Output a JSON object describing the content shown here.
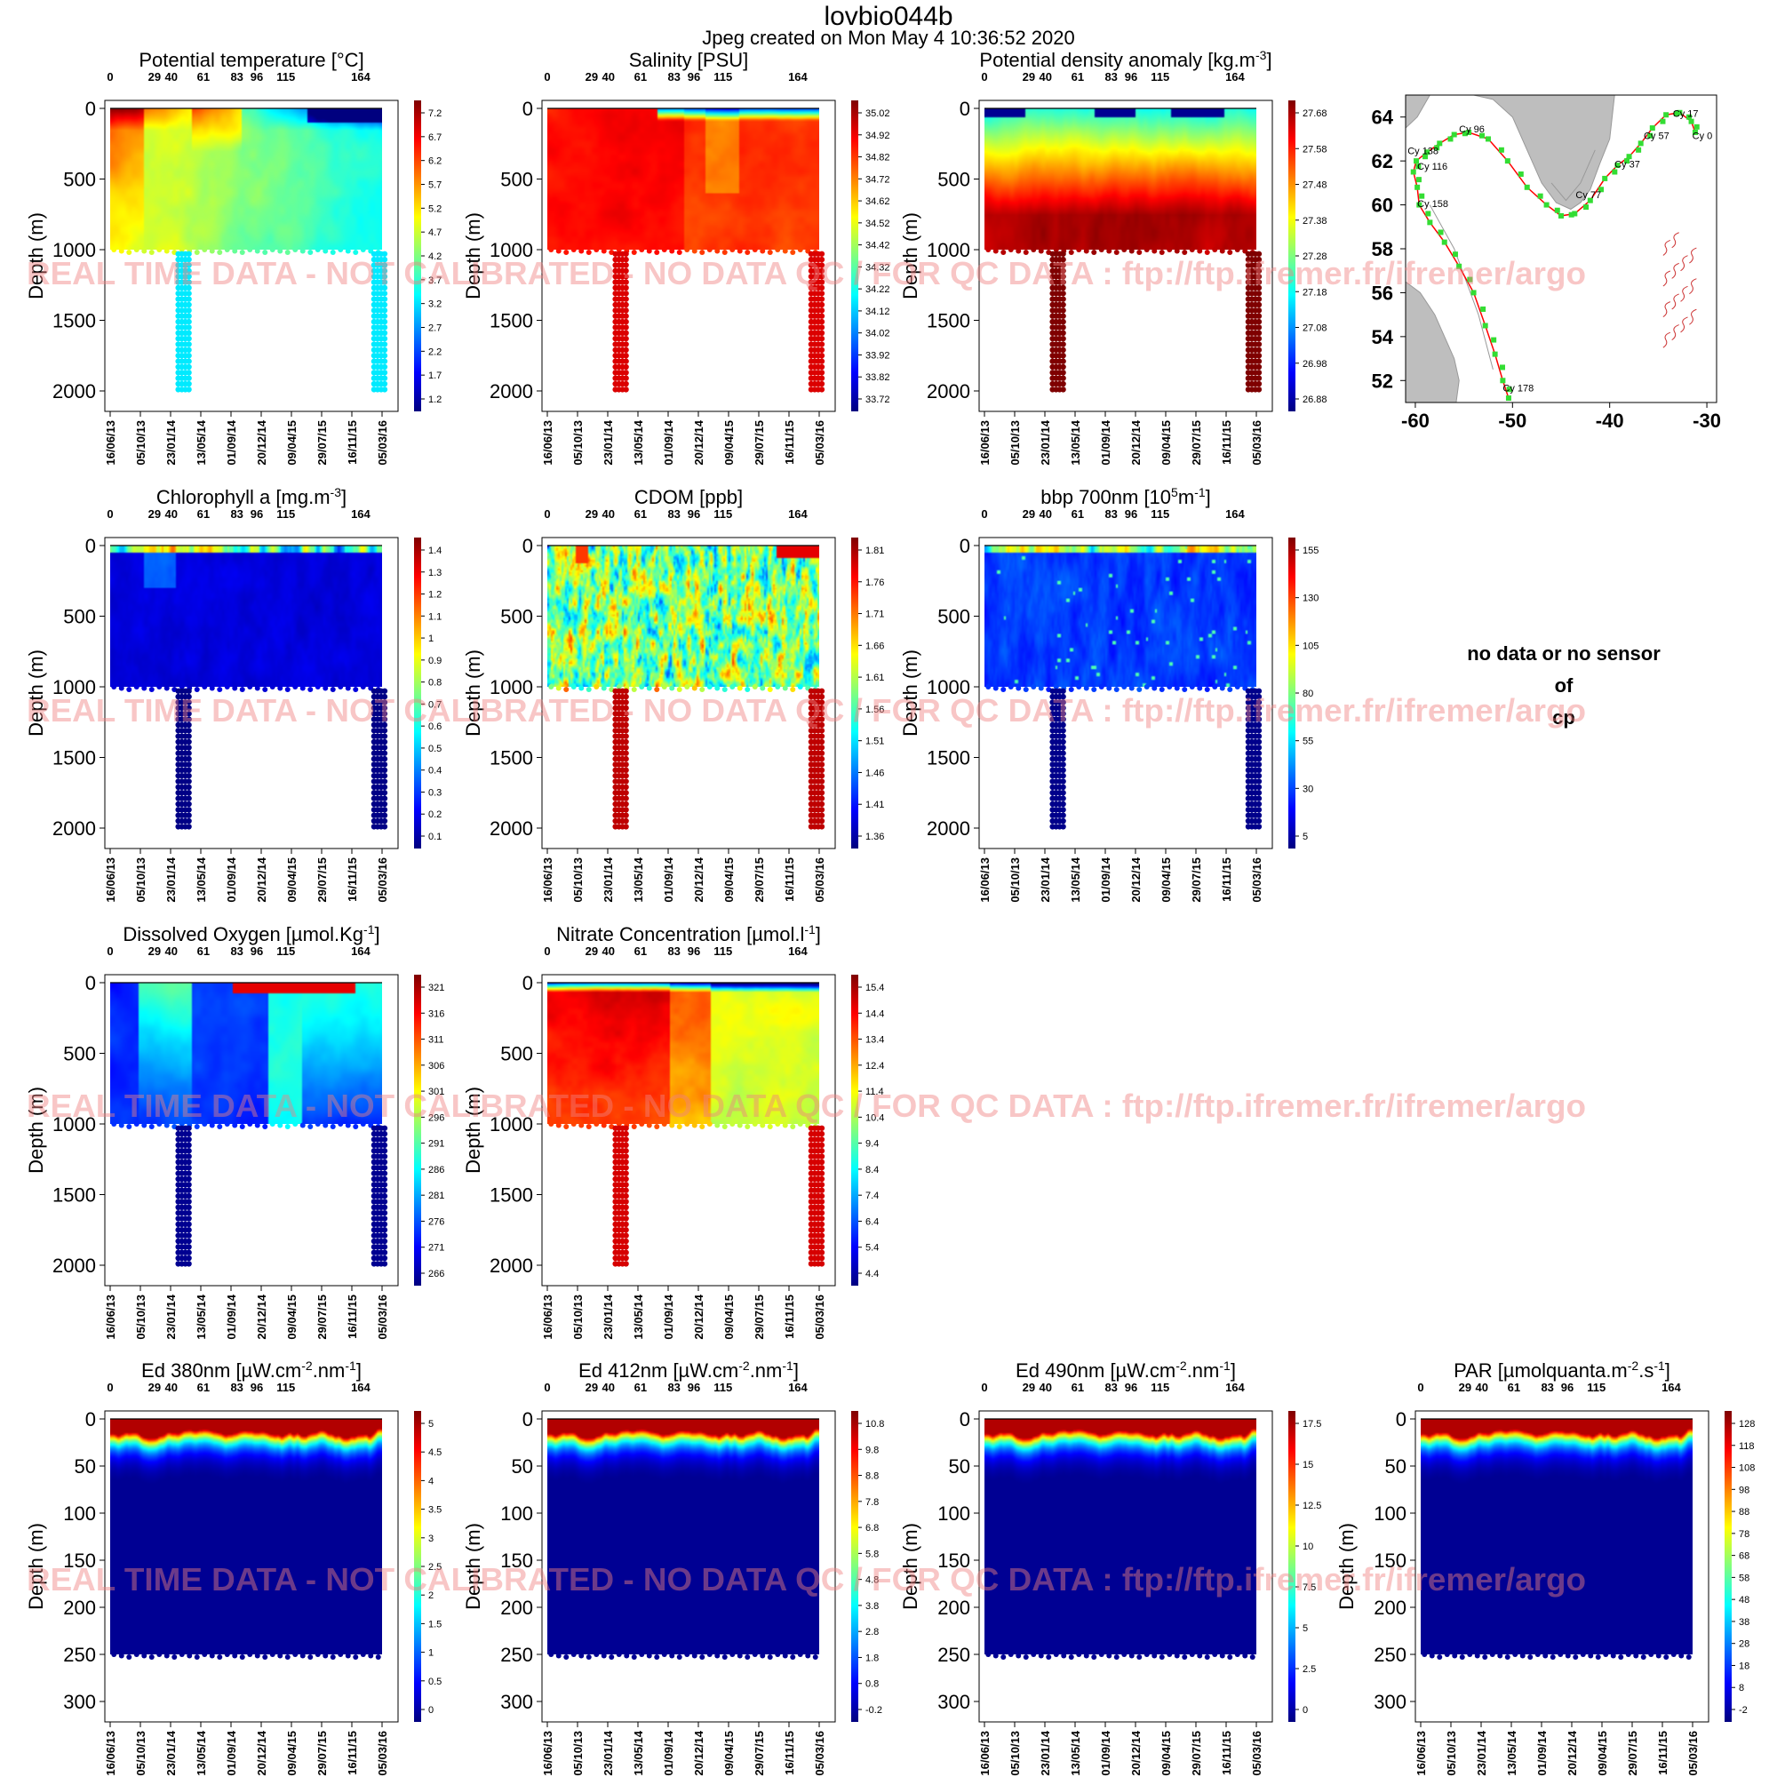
{
  "header": {
    "title": "lovbio044b",
    "subtitle": "Jpeg created on  Mon May  4 10:36:52 2020"
  },
  "watermark": "REAL TIME DATA - NOT CALIBRATED - NO DATA QC  / FOR QC DATA : ftp://ftp.ifremer.fr/ifremer/argo",
  "no_data": {
    "line1": "no data or no sensor",
    "line2": "of",
    "line3": "cp"
  },
  "axes": {
    "ylabel": "Depth (m)",
    "cycle_ticks": [
      "0",
      "29",
      "40",
      "61",
      "83",
      "96",
      "115",
      "164"
    ],
    "cycle_values": [
      0,
      29,
      40,
      61,
      83,
      96,
      115,
      164
    ],
    "date_ticks": [
      "16/06/13",
      "05/10/13",
      "23/01/14",
      "13/05/14",
      "01/09/14",
      "20/12/14",
      "09/04/15",
      "29/07/15",
      "16/11/15",
      "05/03/16"
    ],
    "date_values": [
      "2013-06-16",
      "2013-10-05",
      "2014-01-23",
      "2014-05-13",
      "2014-09-01",
      "2014-12-20",
      "2015-04-09",
      "2015-07-29",
      "2015-11-16",
      "2016-03-05"
    ]
  },
  "colors": {
    "jet": [
      "#00007f",
      "#0000ff",
      "#007fff",
      "#00ffff",
      "#7fff7f",
      "#ffff00",
      "#ff7f00",
      "#ff0000",
      "#7f0000"
    ],
    "map_land": "#bebebe",
    "map_track": "#ff0000",
    "map_points": "#33dd33"
  },
  "chart_data": [
    {
      "id": "temp",
      "type": "heatmap",
      "title": "Potential temperature [°C]",
      "ylim": [
        2000,
        0
      ],
      "yticks": [
        "0",
        "500",
        "1000",
        "1500",
        "2000"
      ],
      "colorbar": [
        "7.2",
        "6.7",
        "6.2",
        "5.7",
        "5.2",
        "4.7",
        "4.2",
        "3.7",
        "3.2",
        "2.7",
        "2.2",
        "1.7",
        "1.2"
      ],
      "range": [
        1.2,
        7.4
      ],
      "deep_value": 3.4
    },
    {
      "id": "sal",
      "type": "heatmap",
      "title": "Salinity [PSU]",
      "ylim": [
        2000,
        0
      ],
      "yticks": [
        "0",
        "500",
        "1000",
        "1500",
        "2000"
      ],
      "colorbar": [
        "35.02",
        "34.92",
        "34.82",
        "34.72",
        "34.62",
        "34.52",
        "34.42",
        "34.32",
        "34.22",
        "34.12",
        "34.02",
        "33.92",
        "33.82",
        "33.72"
      ],
      "range": [
        33.72,
        35.05
      ],
      "deep_value": 34.93
    },
    {
      "id": "dens",
      "type": "heatmap",
      "title": "Potential density anomaly [kg.m^-3]",
      "ylim": [
        2000,
        0
      ],
      "yticks": [
        "0",
        "500",
        "1000",
        "1500",
        "2000"
      ],
      "colorbar": [
        "27.68",
        "27.58",
        "27.48",
        "27.38",
        "27.28",
        "27.18",
        "27.08",
        "26.98",
        "26.88"
      ],
      "colorbar_reversed": true,
      "range": [
        26.85,
        27.72
      ],
      "deep_value": 27.72
    },
    {
      "id": "chla",
      "type": "heatmap",
      "title": "Chlorophyll a [mg.m^-3]",
      "ylim": [
        2000,
        0
      ],
      "yticks": [
        "0",
        "500",
        "1000",
        "1500",
        "2000"
      ],
      "colorbar": [
        "1.4",
        "1.3",
        "1.2",
        "1.1",
        "1",
        "0.9",
        "0.8",
        "0.7",
        "0.6",
        "0.5",
        "0.4",
        "0.3",
        "0.2",
        "0.1"
      ],
      "range": [
        0.05,
        1.45
      ],
      "deep_value": 0.06
    },
    {
      "id": "cdom",
      "type": "heatmap",
      "title": "CDOM  [ppb]",
      "ylim": [
        2000,
        0
      ],
      "yticks": [
        "0",
        "500",
        "1000",
        "1500",
        "2000"
      ],
      "colorbar": [
        "1.81",
        "1.76",
        "1.71",
        "1.66",
        "1.61",
        "1.56",
        "1.51",
        "1.46",
        "1.41",
        "1.36"
      ],
      "range": [
        1.34,
        1.83
      ],
      "deep_value": 1.8
    },
    {
      "id": "bbp",
      "type": "heatmap",
      "title": "bbp 700nm [10^5m^-1]",
      "ylim": [
        2000,
        0
      ],
      "yticks": [
        "0",
        "500",
        "1000",
        "1500",
        "2000"
      ],
      "colorbar": [
        "155",
        "130",
        "105",
        "80",
        "55",
        "30",
        "5"
      ],
      "range": [
        2,
        170
      ],
      "deep_value": 4
    },
    {
      "id": "doxy",
      "type": "heatmap",
      "title": "Dissolved Oxygen [µmol.Kg^-1]",
      "ylim": [
        2000,
        0
      ],
      "yticks": [
        "0",
        "500",
        "1000",
        "1500",
        "2000"
      ],
      "colorbar": [
        "321",
        "316",
        "311",
        "306",
        "301",
        "296",
        "291",
        "286",
        "281",
        "276",
        "271",
        "266"
      ],
      "range": [
        265,
        322
      ],
      "deep_value": 266
    },
    {
      "id": "nitrate",
      "type": "heatmap",
      "title": "Nitrate Concentration [µmol.l^-1]",
      "ylim": [
        2000,
        0
      ],
      "yticks": [
        "0",
        "500",
        "1000",
        "1500",
        "2000"
      ],
      "colorbar": [
        "15.4",
        "14.4",
        "13.4",
        "12.4",
        "11.4",
        "10.4",
        "9.4",
        "8.4",
        "7.4",
        "6.4",
        "5.4",
        "4.4"
      ],
      "range": [
        4.2,
        16
      ],
      "deep_value": 15
    },
    {
      "id": "ed380",
      "type": "heatmap",
      "title": "Ed 380nm [µW.cm^-2.nm^-1]",
      "ylim": [
        300,
        0
      ],
      "yticks": [
        "0",
        "50",
        "100",
        "150",
        "200",
        "250",
        "300"
      ],
      "colorbar": [
        "5",
        "4.5",
        "4",
        "3.5",
        "3",
        "2.5",
        "2",
        "1.5",
        "1",
        "0.5",
        "0"
      ],
      "range": [
        0,
        5.2
      ]
    },
    {
      "id": "ed412",
      "type": "heatmap",
      "title": "Ed 412nm [µW.cm^-2.nm^-1]",
      "ylim": [
        300,
        0
      ],
      "yticks": [
        "0",
        "50",
        "100",
        "150",
        "200",
        "250",
        "300"
      ],
      "colorbar": [
        "10.8",
        "9.8",
        "8.8",
        "7.8",
        "6.8",
        "5.8",
        "4.8",
        "3.8",
        "2.8",
        "1.8",
        "0.8",
        "-0.2"
      ],
      "range": [
        -0.2,
        11.2
      ]
    },
    {
      "id": "ed490",
      "type": "heatmap",
      "title": "Ed 490nm [µW.cm^-2.nm^-1]",
      "ylim": [
        300,
        0
      ],
      "yticks": [
        "0",
        "50",
        "100",
        "150",
        "200",
        "250",
        "300"
      ],
      "colorbar": [
        "17.5",
        "15",
        "12.5",
        "10",
        "7.5",
        "5",
        "2.5",
        "0"
      ],
      "range": [
        0,
        18
      ]
    },
    {
      "id": "par",
      "type": "heatmap",
      "title": "PAR [µmolquanta.m^-2.s^-1]",
      "ylim": [
        300,
        0
      ],
      "yticks": [
        "0",
        "50",
        "100",
        "150",
        "200",
        "250",
        "300"
      ],
      "colorbar": [
        "128",
        "118",
        "108",
        "98",
        "88",
        "78",
        "68",
        "58",
        "48",
        "38",
        "28",
        "18",
        "8",
        "-2"
      ],
      "range": [
        -2,
        130
      ]
    },
    {
      "id": "map",
      "type": "scatter",
      "xlim": [
        -61,
        -29
      ],
      "ylim": [
        51,
        65
      ],
      "xticks": [
        "-60",
        "-50",
        "-40",
        "-30"
      ],
      "yticks": [
        "52",
        "54",
        "56",
        "58",
        "60",
        "62",
        "64"
      ],
      "labels": [
        {
          "text": "Cy 17",
          "x": -33.5,
          "y": 64.0
        },
        {
          "text": "Cy 96",
          "x": -55.5,
          "y": 63.3
        },
        {
          "text": "Cy 57",
          "x": -36.5,
          "y": 63.0
        },
        {
          "text": "Cy 0",
          "x": -31.5,
          "y": 63.0
        },
        {
          "text": "Cy 138",
          "x": -60.8,
          "y": 62.3
        },
        {
          "text": "Cy 37",
          "x": -39.5,
          "y": 61.7
        },
        {
          "text": "Cy 116",
          "x": -59.8,
          "y": 61.6
        },
        {
          "text": "Cy 77",
          "x": -43.5,
          "y": 60.3
        },
        {
          "text": "Cy 158",
          "x": -59.8,
          "y": 59.9
        },
        {
          "text": "Cy 178",
          "x": -51.0,
          "y": 51.5
        }
      ],
      "track": [
        [
          -31.2,
          63.3
        ],
        [
          -31.6,
          63.8
        ],
        [
          -32.8,
          64.2
        ],
        [
          -34.2,
          64.1
        ],
        [
          -35.6,
          63.5
        ],
        [
          -36.8,
          62.8
        ],
        [
          -38.0,
          62.2
        ],
        [
          -39.2,
          61.8
        ],
        [
          -40.5,
          61.2
        ],
        [
          -42.0,
          60.2
        ],
        [
          -43.6,
          59.6
        ],
        [
          -45.0,
          59.5
        ],
        [
          -46.5,
          60.0
        ],
        [
          -48.5,
          60.8
        ],
        [
          -50.5,
          62.0
        ],
        [
          -52.5,
          63.0
        ],
        [
          -54.5,
          63.3
        ],
        [
          -56.0,
          63.2
        ],
        [
          -57.5,
          62.8
        ],
        [
          -58.8,
          62.4
        ],
        [
          -59.9,
          62.0
        ],
        [
          -60.2,
          61.5
        ],
        [
          -59.8,
          60.8
        ],
        [
          -59.6,
          60.0
        ],
        [
          -58.5,
          59.2
        ],
        [
          -57.0,
          58.3
        ],
        [
          -55.5,
          57.2
        ],
        [
          -54.0,
          56.0
        ],
        [
          -52.8,
          54.5
        ],
        [
          -51.8,
          53.2
        ],
        [
          -51.0,
          52.0
        ],
        [
          -50.4,
          51.2
        ]
      ]
    }
  ]
}
